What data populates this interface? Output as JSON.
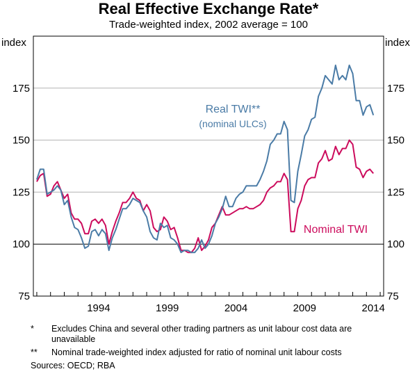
{
  "chart_data": {
    "type": "line",
    "title": "Real Effective Exchange Rate*",
    "subtitle": "Trade-weighted index, 2002 average = 100",
    "ylabel_left": "index",
    "ylabel_right": "index",
    "ylim": [
      75,
      200
    ],
    "yticks": [
      75,
      100,
      125,
      150,
      175
    ],
    "xlim": [
      1989.75,
      2015.25
    ],
    "xticks": [
      1994,
      1999,
      2004,
      2009,
      2014
    ],
    "reference_line": 100,
    "series": [
      {
        "name": "Real TWI**",
        "name_line2": "(nominal ULCs)",
        "color": "#4a7ba6",
        "x": [
          1990.0,
          1990.25,
          1990.5,
          1990.75,
          1991.0,
          1991.25,
          1991.5,
          1991.75,
          1992.0,
          1992.25,
          1992.5,
          1992.75,
          1993.0,
          1993.25,
          1993.5,
          1993.75,
          1994.0,
          1994.25,
          1994.5,
          1994.75,
          1995.0,
          1995.25,
          1995.5,
          1995.75,
          1996.0,
          1996.25,
          1996.5,
          1996.75,
          1997.0,
          1997.25,
          1997.5,
          1997.75,
          1998.0,
          1998.25,
          1998.5,
          1998.75,
          1999.0,
          1999.25,
          1999.5,
          1999.75,
          2000.0,
          2000.25,
          2000.5,
          2000.75,
          2001.0,
          2001.25,
          2001.5,
          2001.75,
          2002.0,
          2002.25,
          2002.5,
          2002.75,
          2003.0,
          2003.25,
          2003.5,
          2003.75,
          2004.0,
          2004.25,
          2004.5,
          2004.75,
          2005.0,
          2005.25,
          2005.5,
          2005.75,
          2006.0,
          2006.25,
          2006.5,
          2006.75,
          2007.0,
          2007.25,
          2007.5,
          2007.75,
          2008.0,
          2008.25,
          2008.5,
          2008.75,
          2009.0,
          2009.25,
          2009.5,
          2009.75,
          2010.0,
          2010.25,
          2010.5,
          2010.75,
          2011.0,
          2011.25,
          2011.5,
          2011.75,
          2012.0,
          2012.25,
          2012.5,
          2012.75,
          2013.0,
          2013.25,
          2013.5,
          2013.75,
          2014.0,
          2014.25,
          2014.5
        ],
        "values": [
          131,
          136,
          136,
          124,
          125,
          126,
          128,
          126,
          119,
          121,
          113,
          108,
          107,
          103,
          98,
          99,
          106,
          107,
          104,
          107,
          105,
          97,
          103,
          107,
          112,
          117,
          117,
          119,
          122,
          121,
          120,
          116,
          113,
          106,
          103,
          102,
          110,
          108,
          109,
          103,
          102,
          100,
          96,
          97,
          97,
          96,
          96,
          98,
          102,
          98,
          100,
          104,
          110,
          113,
          117,
          123,
          118,
          118,
          122,
          124,
          125,
          128,
          128,
          128,
          128,
          131,
          135,
          140,
          148,
          150,
          153,
          153,
          159,
          155,
          121,
          120,
          135,
          143,
          152,
          155,
          160,
          161,
          171,
          175,
          181,
          179,
          177,
          186,
          179,
          181,
          179,
          186,
          182,
          169,
          169,
          162,
          166,
          167,
          162
        ]
      },
      {
        "name": "Nominal TWI",
        "color": "#cc0b5c",
        "x": [
          1990.0,
          1990.25,
          1990.5,
          1990.75,
          1991.0,
          1991.25,
          1991.5,
          1991.75,
          1992.0,
          1992.25,
          1992.5,
          1992.75,
          1993.0,
          1993.25,
          1993.5,
          1993.75,
          1994.0,
          1994.25,
          1994.5,
          1994.75,
          1995.0,
          1995.25,
          1995.5,
          1995.75,
          1996.0,
          1996.25,
          1996.5,
          1996.75,
          1997.0,
          1997.25,
          1997.5,
          1997.75,
          1998.0,
          1998.25,
          1998.5,
          1998.75,
          1999.0,
          1999.25,
          1999.5,
          1999.75,
          2000.0,
          2000.25,
          2000.5,
          2000.75,
          2001.0,
          2001.25,
          2001.5,
          2001.75,
          2002.0,
          2002.25,
          2002.5,
          2002.75,
          2003.0,
          2003.25,
          2003.5,
          2003.75,
          2004.0,
          2004.25,
          2004.5,
          2004.75,
          2005.0,
          2005.25,
          2005.5,
          2005.75,
          2006.0,
          2006.25,
          2006.5,
          2006.75,
          2007.0,
          2007.25,
          2007.5,
          2007.75,
          2008.0,
          2008.25,
          2008.5,
          2008.75,
          2009.0,
          2009.25,
          2009.5,
          2009.75,
          2010.0,
          2010.25,
          2010.5,
          2010.75,
          2011.0,
          2011.25,
          2011.5,
          2011.75,
          2012.0,
          2012.25,
          2012.5,
          2012.75,
          2013.0,
          2013.25,
          2013.5,
          2013.75,
          2014.0,
          2014.25,
          2014.5
        ],
        "values": [
          130,
          133,
          134,
          123,
          124,
          128,
          130,
          126,
          122,
          124,
          115,
          112,
          112,
          110,
          105,
          105,
          111,
          112,
          110,
          112,
          109,
          100,
          106,
          111,
          115,
          120,
          120,
          122,
          125,
          122,
          121,
          116,
          119,
          116,
          108,
          106,
          107,
          113,
          111,
          107,
          108,
          103,
          97,
          97,
          96,
          96,
          98,
          103,
          97,
          99,
          102,
          108,
          110,
          114,
          118,
          114,
          114,
          115,
          116,
          117,
          117,
          118,
          117,
          117,
          118,
          119,
          121,
          125,
          127,
          128,
          130,
          130,
          134,
          131,
          106,
          106,
          117,
          121,
          128,
          131,
          132,
          132,
          139,
          141,
          145,
          140,
          141,
          147,
          143,
          146,
          146,
          150,
          148,
          137,
          136,
          132,
          135,
          136,
          134
        ]
      }
    ]
  },
  "footnotes": [
    {
      "mark": "*",
      "text": "Excludes China and several other trading partners as unit labour cost data are unavailable"
    },
    {
      "mark": "**",
      "text": "Nominal trade-weighted index adjusted for ratio of nominal unit labour costs"
    }
  ],
  "sources": "Sources:  OECD; RBA"
}
